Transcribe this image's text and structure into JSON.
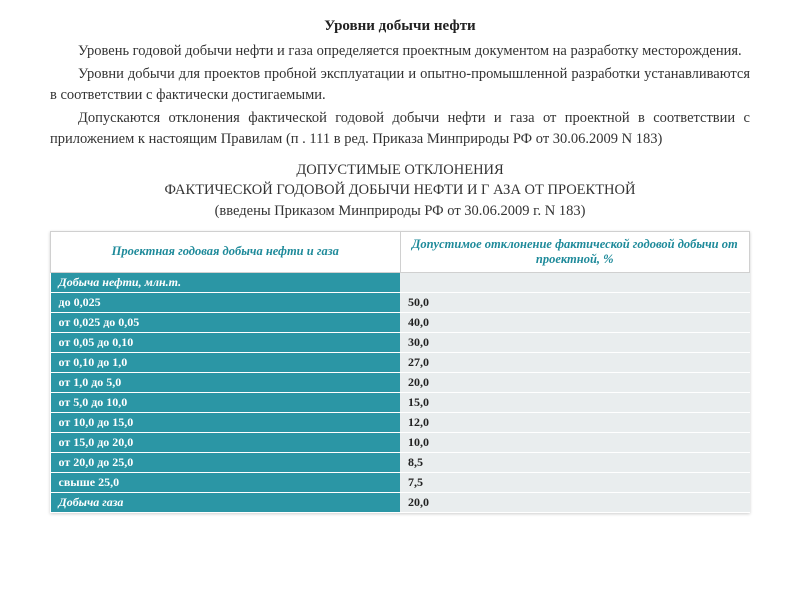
{
  "title": "Уровни добычи нефти",
  "paragraphs": [
    "Уровень годовой добычи нефти и газа определяется проектным документом на разработку месторождения.",
    "Уровни добычи для проектов пробной эксплуатации и опытно-промышленной разработки устанавливаются в соответствии с фактически достигаемыми.",
    "Допускаются отклонения фактической годовой добычи нефти и газа от проектной в соответствии с приложением к настоящим Правилам (п . 111 в ред. Приказа Минприроды РФ от 30.06.2009 N 183)"
  ],
  "subtitle_line1": "ДОПУСТИМЫЕ ОТКЛОНЕНИЯ",
  "subtitle_line2": "ФАКТИЧЕСКОЙ ГОДОВОЙ ДОБЫЧИ НЕФТИ И Г АЗА ОТ ПРОЕКТНОЙ",
  "subtitle_line3": "(введены Приказом Минприроды РФ от 30.06.2009 г. N 183)",
  "table": {
    "type": "table",
    "header_bg": "#ffffff",
    "header_color": "#1e8a9a",
    "label_bg": "#2b96a5",
    "label_color": "#ffffff",
    "value_bg": "#e9edee",
    "value_color": "#222222",
    "border_color": "#ffffff",
    "columns": [
      "Проектная годовая добыча нефти и газа",
      "Допустимое отклонение фактической годовой добычи от проектной, %"
    ],
    "section1_label": "Добыча нефти, млн.т.",
    "rows": [
      {
        "label": "до 0,025",
        "value": "50,0"
      },
      {
        "label": "от 0,025 до 0,05",
        "value": "40,0"
      },
      {
        "label": "от 0,05 до 0,10",
        "value": "30,0"
      },
      {
        "label": "от 0,10 до 1,0",
        "value": "27,0"
      },
      {
        "label": "от 1,0 до 5,0",
        "value": "20,0"
      },
      {
        "label": "от 5,0 до 10,0",
        "value": "15,0"
      },
      {
        "label": "от 10,0 до 15,0",
        "value": "12,0"
      },
      {
        "label": "от 15,0 до 20,0",
        "value": "10,0"
      },
      {
        "label": "от 20,0 до 25,0",
        "value": "8,5"
      },
      {
        "label": "свыше 25,0",
        "value": "7,5"
      }
    ],
    "section2_label": "Добыча газа",
    "section2_value": "20,0"
  }
}
